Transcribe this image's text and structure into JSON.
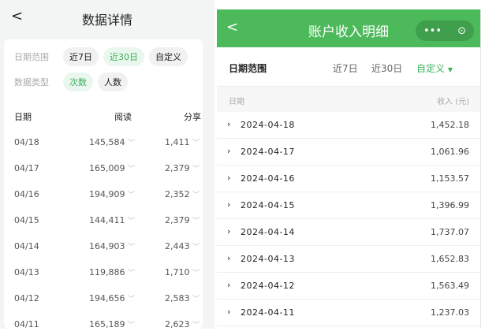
{
  "left": {
    "title": "数据详情",
    "back_icon": "chevron-left-icon",
    "date_range_label": "日期范围",
    "date_options": [
      "近7日",
      "近30日",
      "自定义"
    ],
    "date_selected": "近30日",
    "type_label": "数据类型",
    "type_options": [
      "次数",
      "人数"
    ],
    "type_selected": "次数",
    "columns": [
      "日期",
      "阅读",
      "分享"
    ],
    "rows": [
      {
        "date": "04/18",
        "read": "145,584",
        "share": "1,411"
      },
      {
        "date": "04/17",
        "read": "165,009",
        "share": "2,379"
      },
      {
        "date": "04/16",
        "read": "194,909",
        "share": "2,352"
      },
      {
        "date": "04/15",
        "read": "144,411",
        "share": "2,379"
      },
      {
        "date": "04/14",
        "read": "164,903",
        "share": "2,443"
      },
      {
        "date": "04/13",
        "read": "119,886",
        "share": "1,710"
      },
      {
        "date": "04/12",
        "read": "194,656",
        "share": "2,583"
      },
      {
        "date": "04/11",
        "read": "165,189",
        "share": "2,623"
      }
    ]
  },
  "right": {
    "title": "账户收入明细",
    "accent": "#4cb95a",
    "more_icon": "•••",
    "close_icon": "⊙",
    "date_range_label": "日期范围",
    "date_options": [
      "近7日",
      "近30日",
      "自定义"
    ],
    "date_selected": "自定义",
    "col_date": "日期",
    "col_income": "收入 (元)",
    "rows": [
      {
        "date": "2024-04-18",
        "income": "1,452.18"
      },
      {
        "date": "2024-04-17",
        "income": "1,061.96"
      },
      {
        "date": "2024-04-16",
        "income": "1,153.57"
      },
      {
        "date": "2024-04-15",
        "income": "1,396.99"
      },
      {
        "date": "2024-04-14",
        "income": "1,737.07"
      },
      {
        "date": "2024-04-13",
        "income": "1,652.83"
      },
      {
        "date": "2024-04-12",
        "income": "1,563.49"
      },
      {
        "date": "2024-04-11",
        "income": "1,237.03"
      }
    ]
  }
}
